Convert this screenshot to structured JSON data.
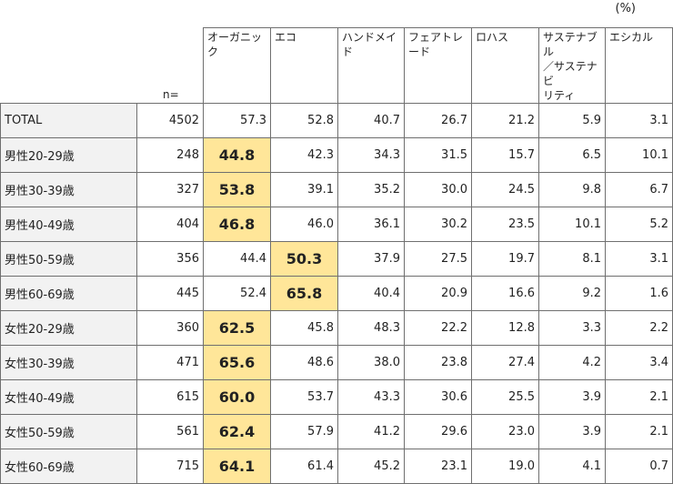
{
  "unit": "(%)",
  "chart_data": {
    "type": "table",
    "n_label": "n=",
    "columns": [
      "オーガニック",
      "エコ",
      "ハンドメイド",
      "フェアトレード",
      "ロハス",
      "サステナブル／サステナビリティ",
      "エシカル"
    ],
    "column_display": [
      "オーガニック",
      "エコ",
      "ハンドメイド",
      "フェアトレード",
      "ロハス",
      "サステナブル\n／サステナビ\nリティ",
      "エシカル"
    ],
    "rows": [
      {
        "label": "TOTAL",
        "n": "4502",
        "values": [
          "57.3",
          "52.8",
          "40.7",
          "26.7",
          "21.2",
          "5.9",
          "3.1"
        ],
        "highlight": -1
      },
      {
        "label": "男性20-29歳",
        "n": "248",
        "values": [
          "44.8",
          "42.3",
          "34.3",
          "31.5",
          "15.7",
          "6.5",
          "10.1"
        ],
        "highlight": 0
      },
      {
        "label": "男性30-39歳",
        "n": "327",
        "values": [
          "53.8",
          "39.1",
          "35.2",
          "30.0",
          "24.5",
          "9.8",
          "6.7"
        ],
        "highlight": 0
      },
      {
        "label": "男性40-49歳",
        "n": "404",
        "values": [
          "46.8",
          "46.0",
          "36.1",
          "30.2",
          "23.5",
          "10.1",
          "5.2"
        ],
        "highlight": 0
      },
      {
        "label": "男性50-59歳",
        "n": "356",
        "values": [
          "44.4",
          "50.3",
          "37.9",
          "27.5",
          "19.7",
          "8.1",
          "3.1"
        ],
        "highlight": 1
      },
      {
        "label": "男性60-69歳",
        "n": "445",
        "values": [
          "52.4",
          "65.8",
          "40.4",
          "20.9",
          "16.6",
          "9.2",
          "1.6"
        ],
        "highlight": 1
      },
      {
        "label": "女性20-29歳",
        "n": "360",
        "values": [
          "62.5",
          "45.8",
          "48.3",
          "22.2",
          "12.8",
          "3.3",
          "2.2"
        ],
        "highlight": 0
      },
      {
        "label": "女性30-39歳",
        "n": "471",
        "values": [
          "65.6",
          "48.6",
          "38.0",
          "23.8",
          "27.4",
          "4.2",
          "3.4"
        ],
        "highlight": 0
      },
      {
        "label": "女性40-49歳",
        "n": "615",
        "values": [
          "60.0",
          "53.7",
          "43.3",
          "30.6",
          "25.5",
          "3.9",
          "2.1"
        ],
        "highlight": 0
      },
      {
        "label": "女性50-59歳",
        "n": "561",
        "values": [
          "62.4",
          "57.9",
          "41.2",
          "29.6",
          "23.0",
          "3.9",
          "2.1"
        ],
        "highlight": 0
      },
      {
        "label": "女性60-69歳",
        "n": "715",
        "values": [
          "64.1",
          "61.4",
          "45.2",
          "23.1",
          "19.0",
          "4.1",
          "0.7"
        ],
        "highlight": 0
      }
    ]
  },
  "colors": {
    "highlight": "#ffe699",
    "label_bg": "#f2f2f2",
    "border": "#6f6f6f"
  }
}
